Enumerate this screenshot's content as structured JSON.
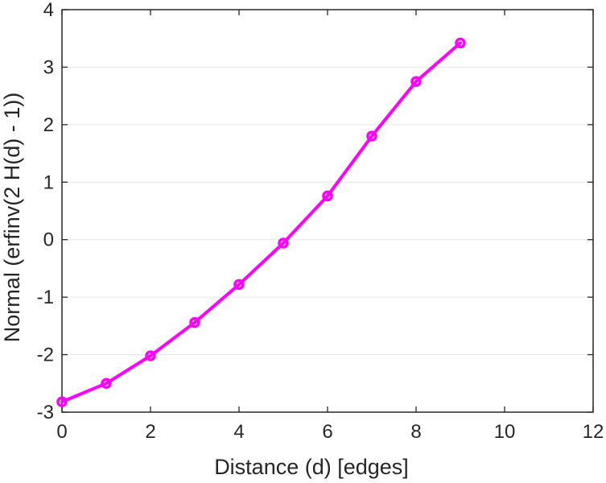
{
  "chart_data": {
    "type": "line",
    "xlabel": "Distance (d) [edges]",
    "ylabel": "Normal (erfinv(2 H(d) - 1))",
    "xlim": [
      0,
      12
    ],
    "ylim": [
      -3,
      4
    ],
    "xticks": [
      0,
      2,
      4,
      6,
      8,
      10,
      12
    ],
    "yticks": [
      -3,
      -2,
      -1,
      0,
      1,
      2,
      3,
      4
    ],
    "x_tick_labels": [
      "0",
      "2",
      "4",
      "6",
      "8",
      "10",
      "12"
    ],
    "y_tick_labels": [
      "-3",
      "-2",
      "-1",
      "0",
      "1",
      "2",
      "3",
      "4"
    ],
    "grid": "horizontal",
    "series": [
      {
        "color": "#ff00ff",
        "marker": "circle",
        "x": [
          0,
          1,
          2,
          3,
          4,
          5,
          6,
          7,
          8,
          9
        ],
        "y": [
          -2.82,
          -2.5,
          -2.02,
          -1.44,
          -0.78,
          -0.06,
          0.76,
          1.8,
          2.75,
          3.42
        ]
      }
    ]
  }
}
